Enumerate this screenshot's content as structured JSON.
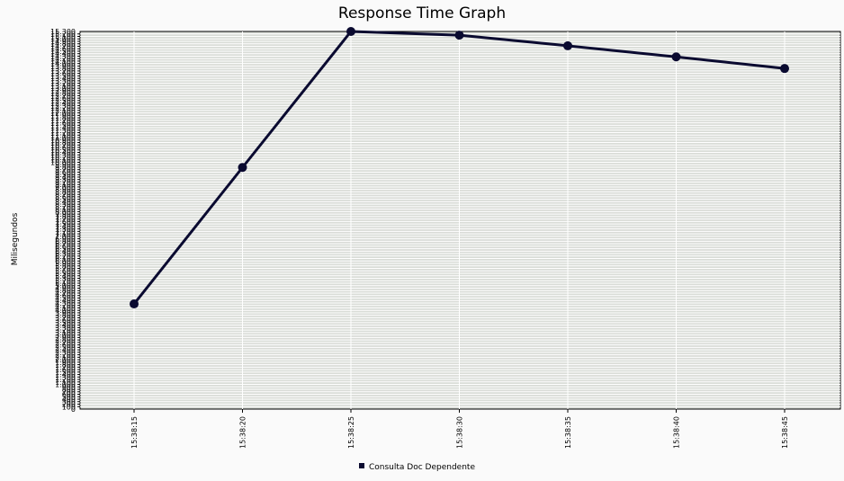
{
  "chart_data": {
    "type": "line",
    "title": "Response Time Graph",
    "xlabel": "",
    "ylabel": "Milisegundos",
    "categories": [
      "15:38:15",
      "15:38:20",
      "15:38:25",
      "15:38:30",
      "15:38:35",
      "15:38:40",
      "15:38:45"
    ],
    "series": [
      {
        "name": "Consulta Doc Dependente",
        "values": [
          4260,
          9790,
          15300,
          15150,
          14720,
          14270,
          13800
        ]
      }
    ],
    "ylim": [
      0,
      15300
    ],
    "ytick_step": 100,
    "ytick_top_label": "15.300",
    "grid": true,
    "legend": "bottom-center",
    "colors": {
      "line": "#0a0a30",
      "plot_bg": "#d9dcd7",
      "grid": "#ffffff"
    }
  }
}
